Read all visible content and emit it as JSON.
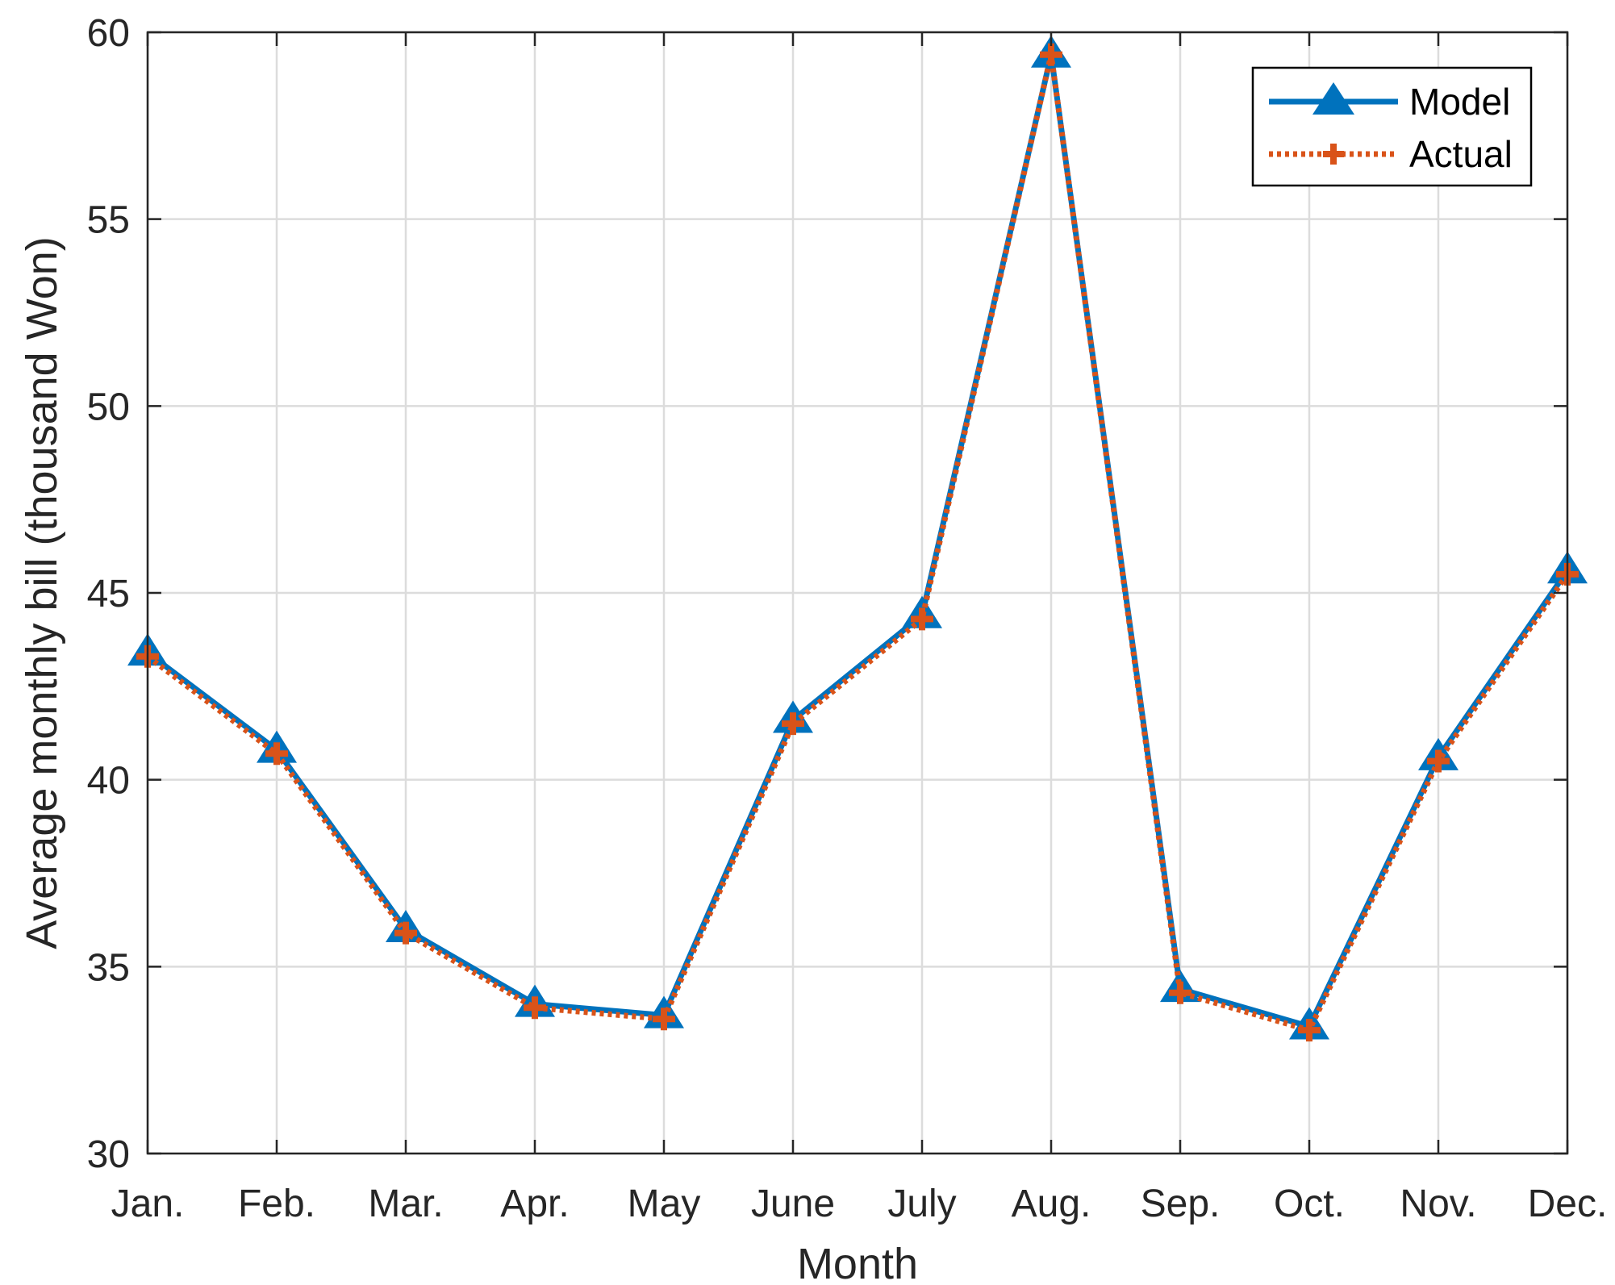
{
  "chart_data": {
    "type": "line",
    "title": "",
    "xlabel": "Month",
    "ylabel": "Average monthly bill (thousand Won)",
    "categories": [
      "Jan.",
      "Feb.",
      "Mar.",
      "Apr.",
      "May",
      "June",
      "July",
      "Aug.",
      "Sep.",
      "Oct.",
      "Nov.",
      "Dec."
    ],
    "ylim": [
      30,
      60
    ],
    "yticks": [
      "30",
      "35",
      "40",
      "45",
      "50",
      "55",
      "60"
    ],
    "grid": true,
    "legend_position": "top-right",
    "series": [
      {
        "name": "Model",
        "color": "#0072BD",
        "marker": "triangle",
        "line_style": "solid",
        "values": [
          43.4,
          40.8,
          36.0,
          34.0,
          33.7,
          41.6,
          44.4,
          59.4,
          34.4,
          33.4,
          40.6,
          45.6
        ]
      },
      {
        "name": "Actual",
        "color": "#D95319",
        "marker": "plus",
        "line_style": "dotted",
        "values": [
          43.3,
          40.7,
          35.9,
          33.9,
          33.6,
          41.5,
          44.3,
          59.4,
          34.3,
          33.3,
          40.5,
          45.5
        ]
      }
    ]
  }
}
